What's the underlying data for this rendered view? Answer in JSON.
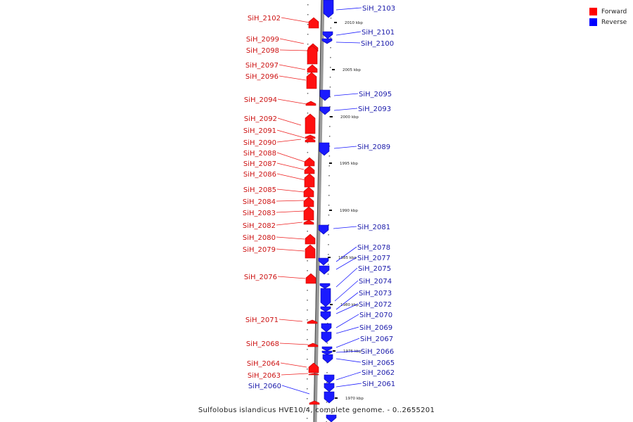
{
  "legend": {
    "forward_label": "Forward",
    "reverse_label": "Reverse",
    "forward_color": "#ff0000",
    "reverse_color": "#0000ff"
  },
  "caption": "Sulfolobus islandicus HVE10/4, complete genome. - 0..2655201",
  "scale": {
    "ticks": [
      "2010 kbp",
      "2005 kbp",
      "2000 kbp",
      "1995 kbp",
      "1990 kbp",
      "1985 kbp",
      "1980 kbp",
      "1975 kbp",
      "1970 kbp"
    ]
  },
  "genes": {
    "forward": [
      "SiH_2102",
      "SiH_2099",
      "SiH_2098",
      "SiH_2097",
      "SiH_2096",
      "SiH_2094",
      "SiH_2092",
      "SiH_2091",
      "SiH_2090",
      "SiH_2088",
      "SiH_2087",
      "SiH_2086",
      "SiH_2085",
      "SiH_2084",
      "SiH_2083",
      "SiH_2082",
      "SiH_2080",
      "SiH_2079",
      "SiH_2076",
      "SiH_2071",
      "SiH_2068",
      "SiH_2064",
      "SiH_2063",
      "SiH_2060"
    ],
    "reverse": [
      "SiH_2103",
      "SiH_2101",
      "SiH_2100",
      "SiH_2095",
      "SiH_2093",
      "SiH_2089",
      "SiH_2081",
      "SiH_2078",
      "SiH_2077",
      "SiH_2075",
      "SiH_2074",
      "SiH_2073",
      "SiH_2072",
      "SiH_2070",
      "SiH_2069",
      "SiH_2067",
      "SiH_2066",
      "SiH_2065",
      "SiH_2062",
      "SiH_2061"
    ]
  }
}
